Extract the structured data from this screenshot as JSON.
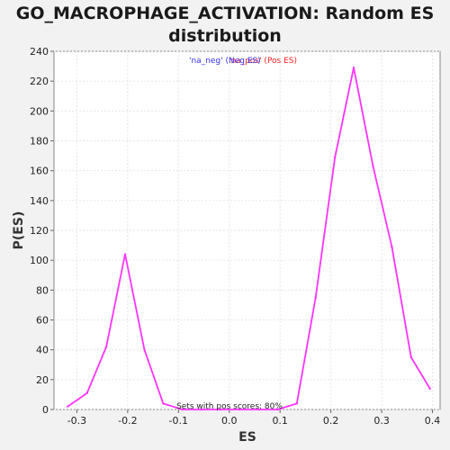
{
  "chart_data": {
    "type": "line",
    "title_line1": "GO_MACROPHAGE_ACTIVATION: Random ES",
    "title_line2": "distribution",
    "xlabel": "ES",
    "ylabel": "P(ES)",
    "xlim": [
      -0.345,
      0.415
    ],
    "ylim": [
      0,
      240
    ],
    "xticks": [
      -0.3,
      -0.2,
      -0.1,
      0.0,
      0.1,
      0.2,
      0.3,
      0.4
    ],
    "xtick_labels": [
      "-0.3",
      "-0.2",
      "-0.1",
      "0.0",
      "0.1",
      "0.2",
      "0.3",
      "0.4"
    ],
    "yticks": [
      0,
      20,
      40,
      60,
      80,
      100,
      120,
      140,
      160,
      180,
      200,
      220,
      240
    ],
    "ytick_labels": [
      "0",
      "20",
      "40",
      "60",
      "80",
      "100",
      "120",
      "140",
      "160",
      "180",
      "200",
      "220",
      "240"
    ],
    "grid": true,
    "legend_neg": "'na_neg' (Neg ES)",
    "legend_pos": "'na_pos' (Pos ES)",
    "legend_neg_color": "#3333ff",
    "legend_pos_color": "#ff2222",
    "annotation": "Sets with pos scores: 80%",
    "line_color": "#ff33ff",
    "series": [
      {
        "x": [
          -0.318,
          -0.28,
          -0.242,
          -0.205,
          -0.167,
          -0.13,
          -0.092,
          -0.055,
          -0.017,
          0.02,
          0.058,
          0.095,
          0.133,
          0.17,
          0.208,
          0.245,
          0.283,
          0.32,
          0.358,
          0.395
        ],
        "y": [
          2,
          11,
          42,
          104,
          40,
          4,
          0,
          0,
          0,
          0,
          0,
          0,
          4,
          75,
          169,
          229,
          163,
          109,
          35,
          14
        ]
      }
    ]
  }
}
